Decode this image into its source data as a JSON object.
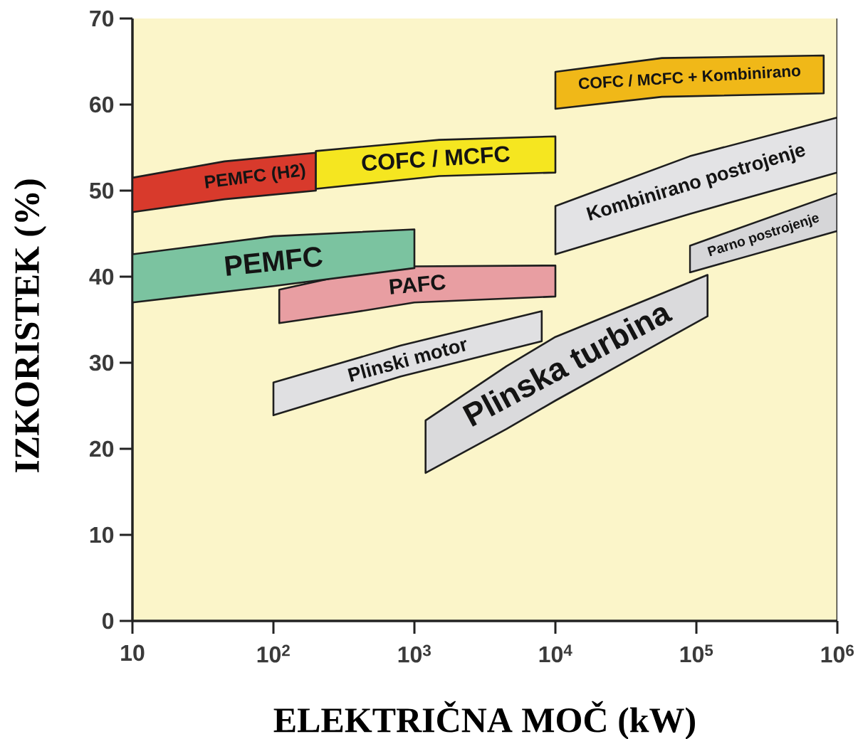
{
  "chart_data": {
    "type": "area",
    "xlabel": "ELEKTRIČNA MOČ (kW)",
    "ylabel": "IZKORISTEK (%)",
    "log": "x",
    "xlim": [
      10,
      1000000
    ],
    "ylim": [
      0,
      70
    ],
    "xticks": [
      10,
      {
        "value": 100,
        "label": "10$^{2}$"
      },
      {
        "value": 1000,
        "label": "10$^{3}$"
      },
      {
        "value": 10000,
        "label": "10$^{4}$"
      },
      {
        "value": 100000,
        "label": "10$^{5}$"
      },
      {
        "value": 1000000,
        "label": "10$^{6}$"
      }
    ],
    "yticks": [
      0,
      10,
      20,
      30,
      40,
      50,
      60,
      70
    ],
    "colors": [
      "#e89ea2",
      "#7bc3a0",
      "#d83a2c",
      "#f5e620",
      "#e0e0e2",
      "#dadadc",
      "#e3e3e5",
      "#d6d6d8",
      "#f0b818"
    ],
    "series": [
      {
        "name": "PAFC",
        "x": [
          110,
          350,
          1000,
          10000
        ],
        "values": [
          null,
          null,
          null,
          null
        ],
        "lower": [
          34.6,
          35.8,
          37.0,
          37.7
        ],
        "upper": [
          38.5,
          40.3,
          41.2,
          41.3
        ]
      },
      {
        "name": "PEMFC",
        "x": [
          10,
          100,
          1000
        ],
        "values": [
          null,
          null,
          null
        ],
        "lower": [
          37.0,
          38.9,
          41.0
        ],
        "upper": [
          42.6,
          44.7,
          45.5
        ]
      },
      {
        "name": "PEMFC (H2)",
        "x": [
          10,
          45,
          200
        ],
        "values": [
          null,
          null,
          null
        ],
        "lower": [
          47.5,
          49.0,
          50.0
        ],
        "upper": [
          51.5,
          53.4,
          54.4
        ]
      },
      {
        "name": "COFC / MCFC",
        "x": [
          200,
          1500,
          10000
        ],
        "values": [
          null,
          null,
          null
        ],
        "lower": [
          50.2,
          51.7,
          52.1
        ],
        "upper": [
          54.6,
          55.9,
          56.3
        ]
      },
      {
        "name": "Plinski motor",
        "x": [
          100,
          800,
          8000
        ],
        "values": [
          null,
          null,
          null
        ],
        "lower": [
          23.9,
          28.4,
          32.5
        ],
        "upper": [
          27.7,
          32.0,
          36.0
        ]
      },
      {
        "name": "Plinska turbina",
        "x": [
          1200,
          4500,
          10000,
          120000
        ],
        "values": [
          null,
          null,
          null,
          null
        ],
        "lower": [
          17.2,
          22.3,
          25.6,
          35.4
        ],
        "upper": [
          23.3,
          29.6,
          33.0,
          40.2
        ]
      },
      {
        "name": "Kombinirano postrojenje",
        "x": [
          10000,
          90000,
          1000000
        ],
        "values": [
          null,
          null,
          null
        ],
        "lower": [
          42.6,
          47.3,
          52.1
        ],
        "upper": [
          48.2,
          54.0,
          58.5
        ]
      },
      {
        "name": "Parno postrojenje",
        "x": [
          90000,
          1000000
        ],
        "values": [
          null,
          null
        ],
        "lower": [
          40.5,
          45.3
        ],
        "upper": [
          43.6,
          49.7
        ]
      },
      {
        "name": "COFC / MCFC + Kombinirano",
        "x": [
          10000,
          57000,
          800000
        ],
        "values": [
          null,
          null,
          null
        ],
        "lower": [
          59.5,
          60.9,
          61.3
        ],
        "upper": [
          63.8,
          65.4,
          65.7
        ]
      }
    ]
  }
}
